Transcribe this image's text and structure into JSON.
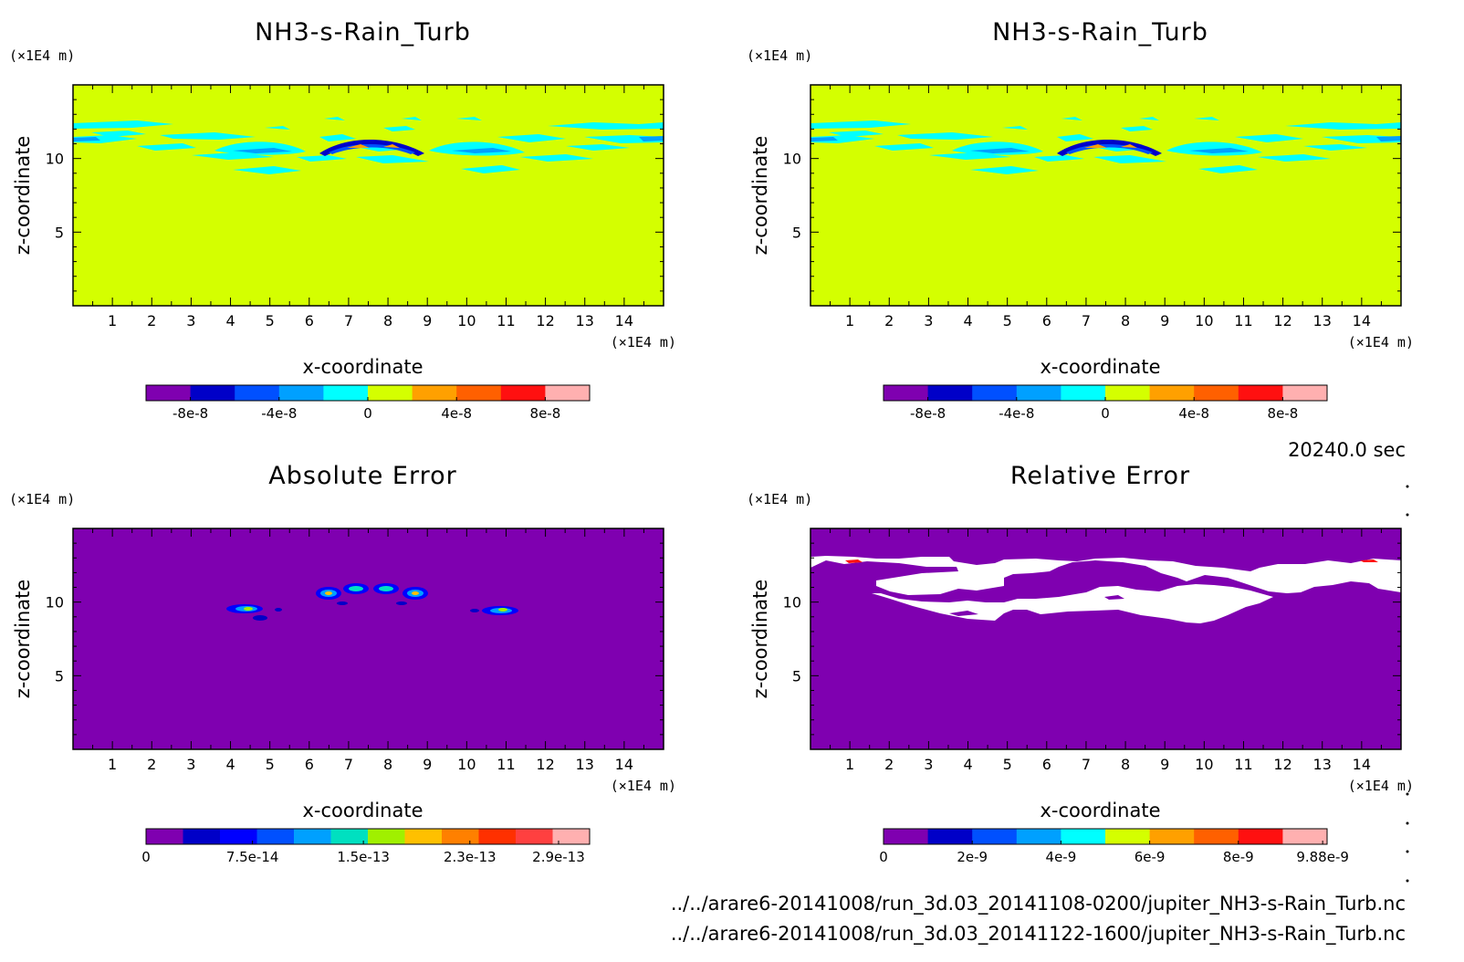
{
  "time_label": "20240.0 sec",
  "file_paths": [
    "../../arare6-20141008/run_3d.03_20141108-0200/jupiter_NH3-s-Rain_Turb.nc",
    "../../arare6-20141008/run_3d.03_20141122-1600/jupiter_NH3-s-Rain_Turb.nc"
  ],
  "colors": {
    "field_background": "#d4ff00",
    "cyan": "#00ffff",
    "light_blue": "#00a0ff",
    "blue": "#0050ff",
    "dark_blue": "#0000c8",
    "purple": "#7f00b0",
    "orange": "#ffa000",
    "white": "#ffffff"
  },
  "chart_data": [
    {
      "type": "heatmap",
      "title": "NH3-s-Rain_Turb",
      "xlabel": "x-coordinate",
      "ylabel": "z-coordinate",
      "x_unit": "(×1E4 m)",
      "y_unit": "(×1E4 m)",
      "xlim": [
        0,
        15
      ],
      "ylim": [
        0,
        15
      ],
      "x_ticks": [
        "1",
        "2",
        "3",
        "4",
        "5",
        "6",
        "7",
        "8",
        "9",
        "10",
        "11",
        "12",
        "13",
        "14"
      ],
      "y_ticks": [
        "5",
        "10"
      ],
      "background": "#d4ff00",
      "colorbar": {
        "colors": [
          "#7f00b0",
          "#0000c8",
          "#0050ff",
          "#00a0ff",
          "#00ffff",
          "#d4ff00",
          "#ffa000",
          "#ff6000",
          "#ff1010",
          "#ffb0b0"
        ],
        "labels": [
          "-8e-8",
          "-4e-8",
          "0",
          "4e-8",
          "8e-8"
        ]
      }
    },
    {
      "type": "heatmap",
      "title": "NH3-s-Rain_Turb",
      "xlabel": "x-coordinate",
      "ylabel": "z-coordinate",
      "x_unit": "(×1E4 m)",
      "y_unit": "(×1E4 m)",
      "xlim": [
        0,
        15
      ],
      "ylim": [
        0,
        15
      ],
      "x_ticks": [
        "1",
        "2",
        "3",
        "4",
        "5",
        "6",
        "7",
        "8",
        "9",
        "10",
        "11",
        "12",
        "13",
        "14"
      ],
      "y_ticks": [
        "5",
        "10"
      ],
      "background": "#d4ff00",
      "colorbar": {
        "colors": [
          "#7f00b0",
          "#0000c8",
          "#0050ff",
          "#00a0ff",
          "#00ffff",
          "#d4ff00",
          "#ffa000",
          "#ff6000",
          "#ff1010",
          "#ffb0b0"
        ],
        "labels": [
          "-8e-8",
          "-4e-8",
          "0",
          "4e-8",
          "8e-8"
        ]
      }
    },
    {
      "type": "heatmap",
      "title": "Absolute Error",
      "xlabel": "x-coordinate",
      "ylabel": "z-coordinate",
      "x_unit": "(×1E4 m)",
      "y_unit": "(×1E4 m)",
      "xlim": [
        0,
        15
      ],
      "ylim": [
        0,
        15
      ],
      "x_ticks": [
        "1",
        "2",
        "3",
        "4",
        "5",
        "6",
        "7",
        "8",
        "9",
        "10",
        "11",
        "12",
        "13",
        "14"
      ],
      "y_ticks": [
        "5",
        "10"
      ],
      "background": "#7f00b0",
      "colorbar": {
        "colors": [
          "#7f00b0",
          "#0000c8",
          "#0000ff",
          "#0050ff",
          "#00a0ff",
          "#00e0c0",
          "#a0f000",
          "#ffc000",
          "#ff8000",
          "#ff3000",
          "#ff4040",
          "#ffb0b0"
        ],
        "labels": [
          "0",
          "7.5e-14",
          "1.5e-13",
          "2.3e-13",
          "2.9e-13"
        ]
      }
    },
    {
      "type": "heatmap",
      "title": "Relative Error",
      "xlabel": "x-coordinate",
      "ylabel": "z-coordinate",
      "x_unit": "(×1E4 m)",
      "y_unit": "(×1E4 m)",
      "xlim": [
        0,
        15
      ],
      "ylim": [
        0,
        15
      ],
      "x_ticks": [
        "1",
        "2",
        "3",
        "4",
        "5",
        "6",
        "7",
        "8",
        "9",
        "10",
        "11",
        "12",
        "13",
        "14"
      ],
      "y_ticks": [
        "5",
        "10"
      ],
      "background": "#7f00b0",
      "colorbar": {
        "colors": [
          "#7f00b0",
          "#0000c8",
          "#0050ff",
          "#00a0ff",
          "#00ffff",
          "#d4ff00",
          "#ffa000",
          "#ff6000",
          "#ff1010",
          "#ffb0b0"
        ],
        "labels": [
          "0",
          "2e-9",
          "4e-9",
          "6e-9",
          "8e-9",
          "9.88e-9"
        ]
      }
    }
  ]
}
